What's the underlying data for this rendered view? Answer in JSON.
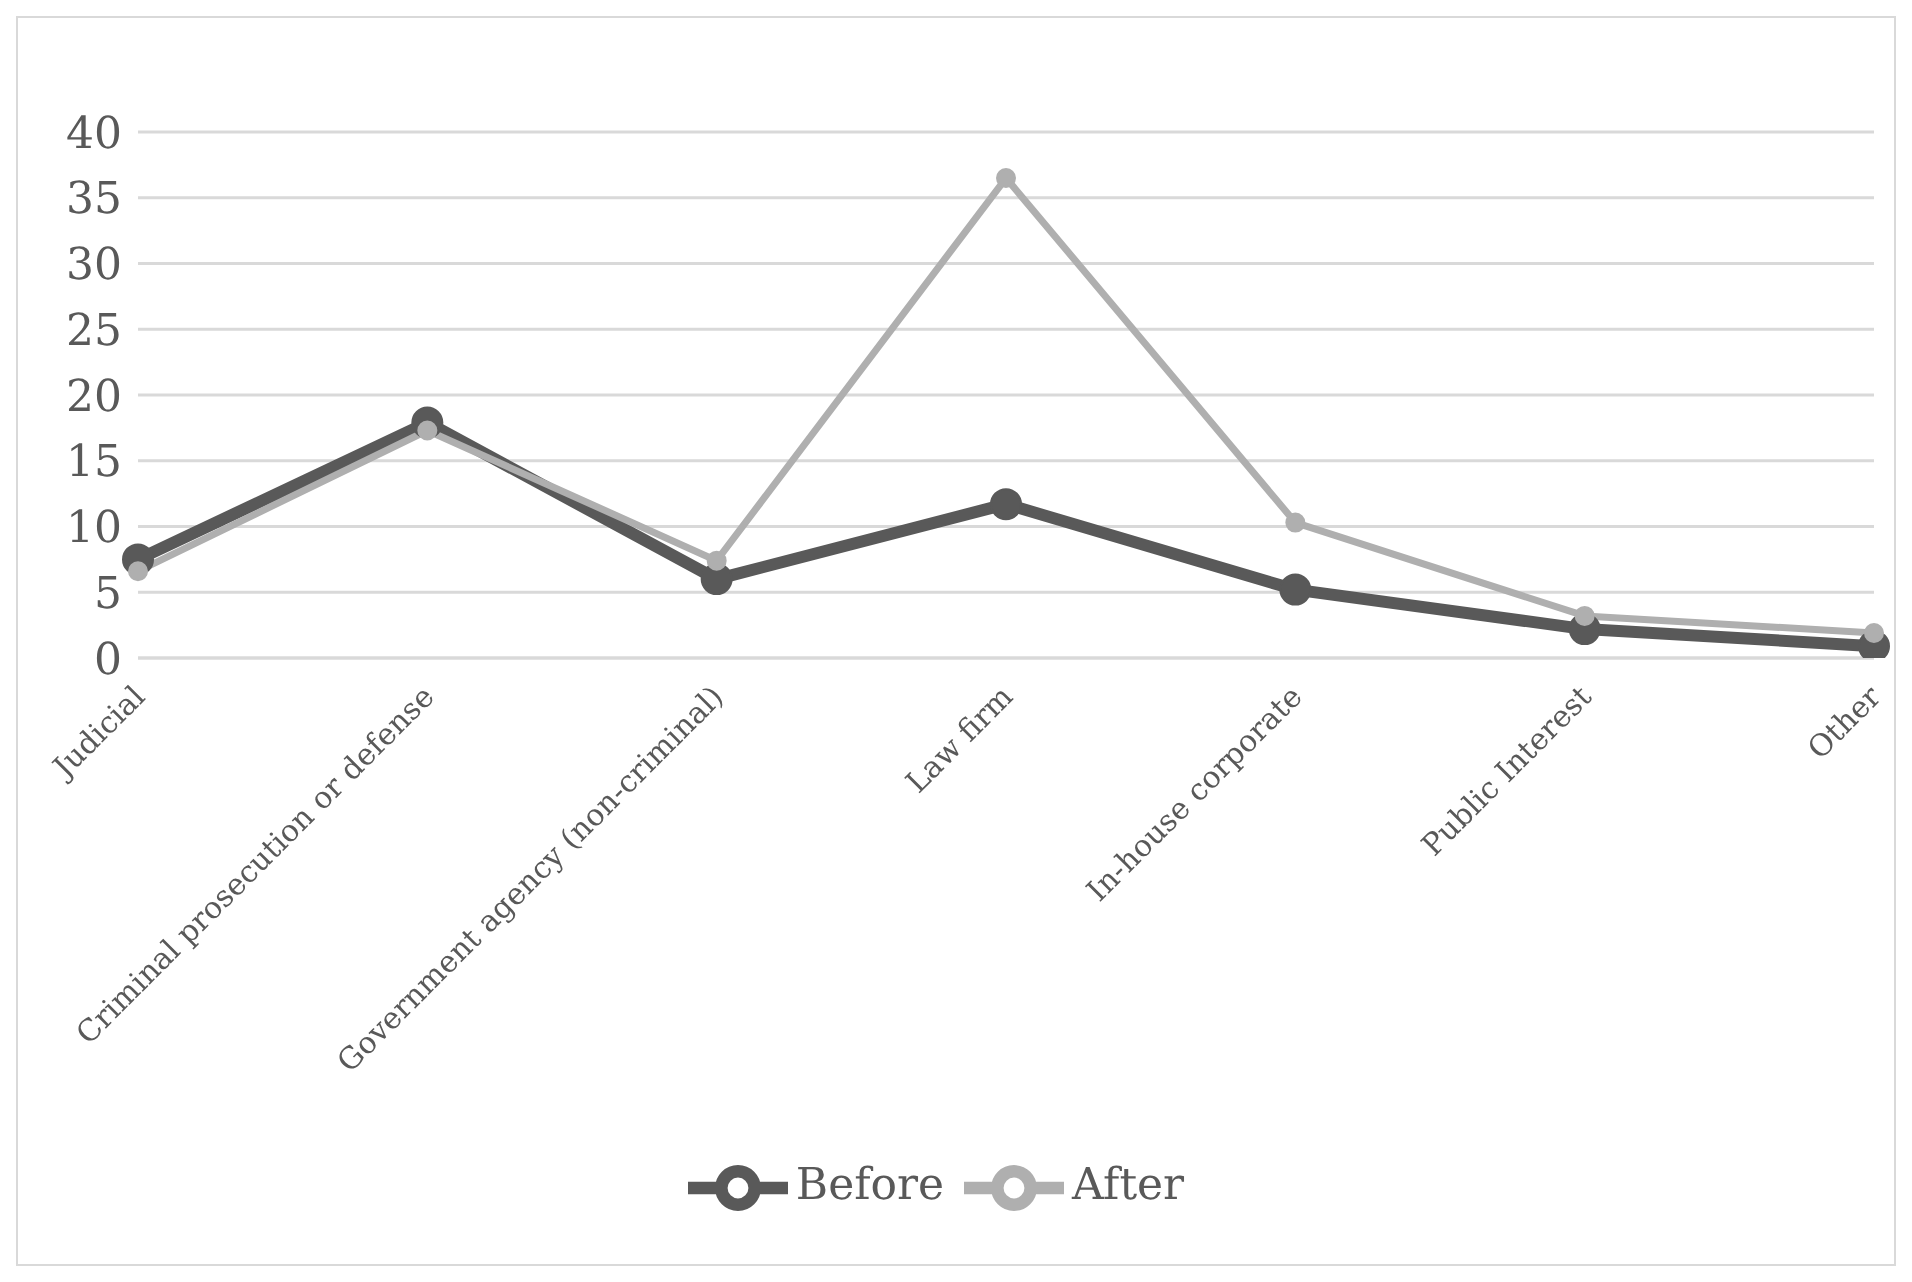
{
  "chart_data": {
    "type": "line",
    "categories": [
      "Judicial",
      "Criminal prosecution or defense",
      "Government agency (non-criminal)",
      "Law firm",
      "In-house corporate",
      "Public Interest",
      "Other"
    ],
    "series": [
      {
        "name": "Before",
        "color": "#595959",
        "values": [
          7.5,
          17.9,
          6.0,
          11.7,
          5.2,
          2.2,
          0.9
        ]
      },
      {
        "name": "After",
        "color": "#afafaf",
        "values": [
          6.6,
          17.3,
          7.4,
          36.5,
          10.3,
          3.2,
          1.9
        ]
      }
    ],
    "ylim": [
      0,
      40
    ],
    "yticks": [
      0,
      5,
      10,
      15,
      20,
      25,
      30,
      35,
      40
    ],
    "grid": "y",
    "legend": "bottom",
    "marker": "circle",
    "line_style": "solid"
  }
}
